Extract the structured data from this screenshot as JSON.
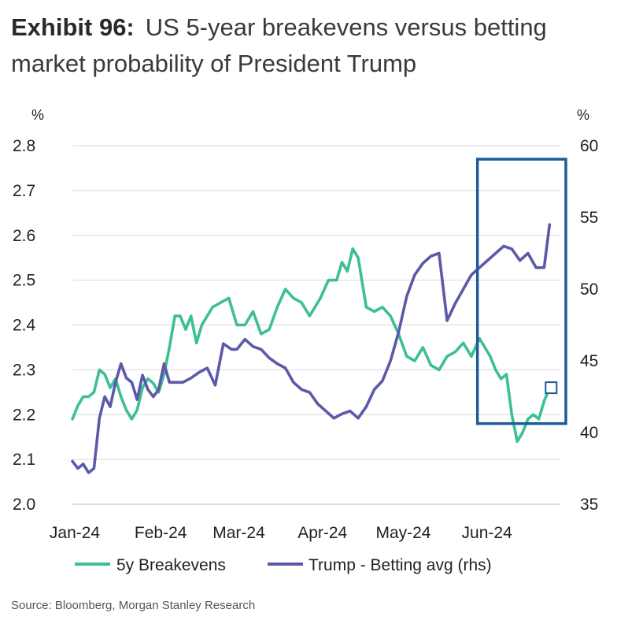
{
  "header": {
    "exhibit": "Exhibit 96:",
    "title": "US 5-year breakevens versus betting market probability of President Trump"
  },
  "source": "Source: Bloomberg, Morgan Stanley Research",
  "colors": {
    "breakevens": "#3dbf95",
    "trump": "#5b5aa8",
    "highlight": "#1f5a9a",
    "grid": "#d9d9d9"
  },
  "chart_data": {
    "type": "line",
    "title": "US 5-year breakevens versus betting market probability of President Trump",
    "left_axis": {
      "unit": "%",
      "ylim": [
        2.0,
        2.8
      ],
      "ticks": [
        "2.0",
        "2.1",
        "2.2",
        "2.3",
        "2.4",
        "2.5",
        "2.6",
        "2.7",
        "2.8"
      ]
    },
    "right_axis": {
      "unit": "%",
      "ylim": [
        35,
        60
      ],
      "ticks": [
        "35",
        "40",
        "45",
        "50",
        "55",
        "60"
      ]
    },
    "x_ticks": [
      "Jan-24",
      "Feb-24",
      "Mar-24",
      "Apr-24",
      "May-24",
      "Jun-24"
    ],
    "x_range": [
      "2024-01-01",
      "2024-06-30"
    ],
    "grid": true,
    "legend": "bottom",
    "series": [
      {
        "name": "5y Breakevens",
        "axis": "left",
        "x": [
          "2024-01-01",
          "2024-01-03",
          "2024-01-05",
          "2024-01-07",
          "2024-01-09",
          "2024-01-11",
          "2024-01-13",
          "2024-01-15",
          "2024-01-17",
          "2024-01-19",
          "2024-01-21",
          "2024-01-23",
          "2024-01-25",
          "2024-01-27",
          "2024-01-29",
          "2024-01-31",
          "2024-02-02",
          "2024-02-04",
          "2024-02-06",
          "2024-02-08",
          "2024-02-10",
          "2024-02-12",
          "2024-02-14",
          "2024-02-16",
          "2024-02-18",
          "2024-02-20",
          "2024-02-22",
          "2024-02-25",
          "2024-02-28",
          "2024-03-02",
          "2024-03-05",
          "2024-03-08",
          "2024-03-11",
          "2024-03-14",
          "2024-03-17",
          "2024-03-20",
          "2024-03-23",
          "2024-03-26",
          "2024-03-29",
          "2024-04-02",
          "2024-04-05",
          "2024-04-08",
          "2024-04-10",
          "2024-04-12",
          "2024-04-14",
          "2024-04-16",
          "2024-04-19",
          "2024-04-22",
          "2024-04-25",
          "2024-04-28",
          "2024-05-01",
          "2024-05-04",
          "2024-05-07",
          "2024-05-10",
          "2024-05-13",
          "2024-05-16",
          "2024-05-19",
          "2024-05-22",
          "2024-05-25",
          "2024-05-28",
          "2024-05-31",
          "2024-06-02",
          "2024-06-04",
          "2024-06-06",
          "2024-06-08",
          "2024-06-10",
          "2024-06-12",
          "2024-06-14",
          "2024-06-16",
          "2024-06-18",
          "2024-06-20",
          "2024-06-22",
          "2024-06-24",
          "2024-06-26"
        ],
        "values": [
          2.19,
          2.22,
          2.24,
          2.24,
          2.25,
          2.3,
          2.29,
          2.26,
          2.28,
          2.24,
          2.21,
          2.19,
          2.21,
          2.26,
          2.28,
          2.27,
          2.25,
          2.29,
          2.35,
          2.42,
          2.42,
          2.39,
          2.42,
          2.36,
          2.4,
          2.42,
          2.44,
          2.45,
          2.46,
          2.4,
          2.4,
          2.43,
          2.38,
          2.39,
          2.44,
          2.48,
          2.46,
          2.45,
          2.42,
          2.46,
          2.5,
          2.5,
          2.54,
          2.52,
          2.57,
          2.55,
          2.44,
          2.43,
          2.44,
          2.42,
          2.38,
          2.33,
          2.32,
          2.35,
          2.31,
          2.3,
          2.33,
          2.34,
          2.36,
          2.33,
          2.37,
          2.35,
          2.33,
          2.3,
          2.28,
          2.29,
          2.2,
          2.14,
          2.16,
          2.19,
          2.2,
          2.19,
          2.23,
          2.26
        ]
      },
      {
        "name": "Trump - Betting avg (rhs)",
        "axis": "right",
        "x": [
          "2024-01-01",
          "2024-01-03",
          "2024-01-05",
          "2024-01-07",
          "2024-01-09",
          "2024-01-11",
          "2024-01-13",
          "2024-01-15",
          "2024-01-17",
          "2024-01-19",
          "2024-01-21",
          "2024-01-23",
          "2024-01-25",
          "2024-01-27",
          "2024-01-29",
          "2024-01-31",
          "2024-02-02",
          "2024-02-04",
          "2024-02-06",
          "2024-02-08",
          "2024-02-11",
          "2024-02-14",
          "2024-02-17",
          "2024-02-20",
          "2024-02-23",
          "2024-02-26",
          "2024-02-29",
          "2024-03-02",
          "2024-03-05",
          "2024-03-08",
          "2024-03-11",
          "2024-03-14",
          "2024-03-17",
          "2024-03-20",
          "2024-03-23",
          "2024-03-26",
          "2024-03-29",
          "2024-04-01",
          "2024-04-04",
          "2024-04-07",
          "2024-04-10",
          "2024-04-13",
          "2024-04-16",
          "2024-04-19",
          "2024-04-22",
          "2024-04-25",
          "2024-04-28",
          "2024-05-01",
          "2024-05-04",
          "2024-05-07",
          "2024-05-10",
          "2024-05-13",
          "2024-05-16",
          "2024-05-19",
          "2024-05-22",
          "2024-05-25",
          "2024-05-28",
          "2024-05-31",
          "2024-06-03",
          "2024-06-06",
          "2024-06-09",
          "2024-06-12",
          "2024-06-15",
          "2024-06-18",
          "2024-06-21",
          "2024-06-24",
          "2024-06-26"
        ],
        "values": [
          38.0,
          37.5,
          37.8,
          37.2,
          37.5,
          41.0,
          42.5,
          41.8,
          43.5,
          44.8,
          43.8,
          43.5,
          42.3,
          44.0,
          43.0,
          42.5,
          43.0,
          44.8,
          43.5,
          43.5,
          43.5,
          43.8,
          44.2,
          44.5,
          43.3,
          46.2,
          45.8,
          45.8,
          46.5,
          46.0,
          45.8,
          45.2,
          44.8,
          44.5,
          43.5,
          43.0,
          42.8,
          42.0,
          41.5,
          41.0,
          41.3,
          41.5,
          41.0,
          41.8,
          43.0,
          43.6,
          45.0,
          47.0,
          49.5,
          51.0,
          51.8,
          52.3,
          52.5,
          47.8,
          49.0,
          50.0,
          51.0,
          51.5,
          52.0,
          52.5,
          53.0,
          52.8,
          52.0,
          52.5,
          51.5,
          51.5,
          54.5
        ]
      }
    ],
    "annotations": [
      {
        "type": "box",
        "x_range": [
          "2024-06-01",
          "2024-06-30"
        ],
        "y_range_left": [
          2.18,
          2.77
        ]
      },
      {
        "type": "marker",
        "series": "5y Breakevens",
        "x": "2024-06-26",
        "y": 2.26
      }
    ]
  }
}
